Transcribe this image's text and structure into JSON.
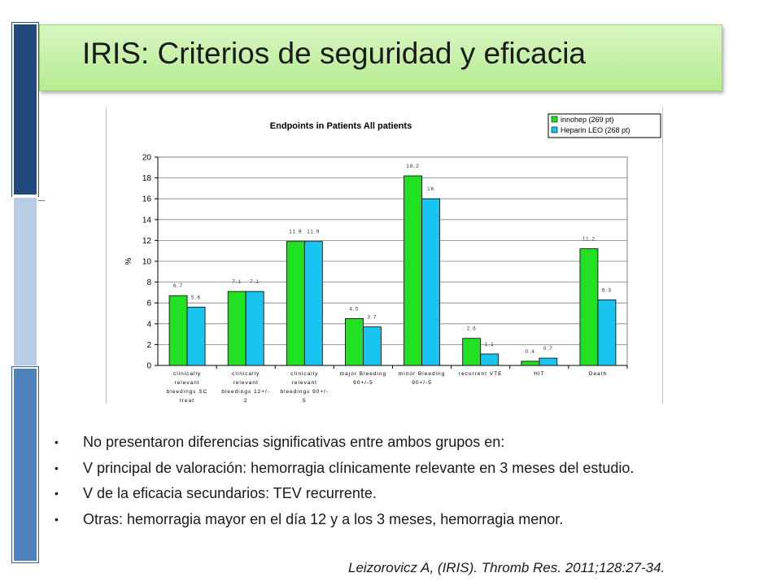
{
  "slide": {
    "title": "IRIS: Criterios de seguridad y eficacia",
    "bullets": [
      "No presentaron diferencias significativas entre ambos grupos en:",
      "V principal de valoración: hemorragia clínicamente relevante en 3 meses del estudio.",
      "V de la eficacia secundarios:  TEV recurrente.",
      "Otras: hemorragia mayor en el día 12 y a los 3 meses, hemorragia menor."
    ],
    "bullet_glyph": "•",
    "citation": "Leizorovicz A, (IRIS). Thromb Res. 2011;128:27-34.",
    "colors": {
      "title_banner": "#c6f0a6",
      "strip_dark": "#1f497d",
      "strip_light": "#b8cce4",
      "strip_mid": "#4f81bd"
    }
  },
  "chart_data": {
    "type": "bar",
    "title": "Endpoints in Patients   All patients",
    "ylabel": "%",
    "xlabel": "",
    "ylim": [
      0,
      20
    ],
    "yticks": [
      0,
      2,
      4,
      6,
      8,
      10,
      12,
      14,
      16,
      18,
      20
    ],
    "grid": true,
    "legend_position": "top-right",
    "categories": [
      [
        "clinically",
        "relevant",
        "bleedings SC",
        "treat"
      ],
      [
        "clinically",
        "relevant",
        "bleedings 12+/-",
        "2"
      ],
      [
        "clinically",
        "relevant",
        "bleedings 90+/-",
        "5"
      ],
      [
        "major Bleeding",
        "90+/-5"
      ],
      [
        "minor Bleeding",
        "90+/-5"
      ],
      [
        "recurrent VTE"
      ],
      [
        "HIT"
      ],
      [
        "Death"
      ]
    ],
    "series": [
      {
        "name": "innohep (269 pt)",
        "color": "#22e022",
        "values": [
          6.7,
          7.1,
          11.9,
          4.5,
          18.2,
          2.6,
          0.4,
          11.2
        ]
      },
      {
        "name": "Heparin LEO (268 pt)",
        "color": "#17c5f0",
        "values": [
          5.6,
          7.1,
          11.9,
          3.7,
          16,
          1.1,
          0.7,
          6.3
        ]
      }
    ]
  }
}
